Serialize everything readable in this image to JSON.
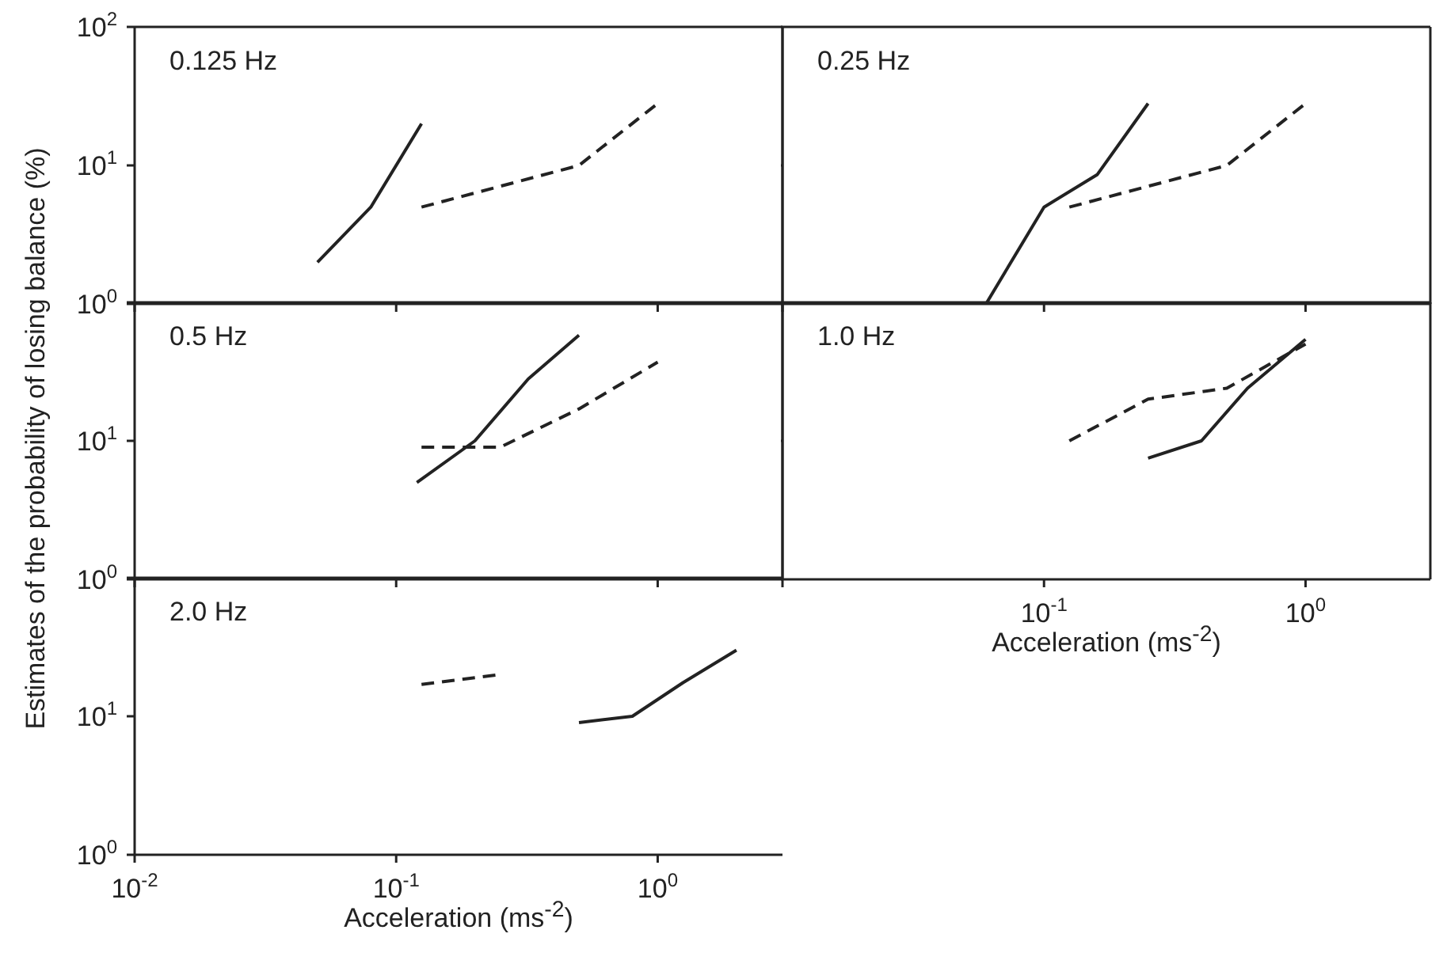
{
  "chart_data": [
    {
      "type": "line",
      "title": "0.125 Hz",
      "log": "xy",
      "xlim": [
        0.01,
        3
      ],
      "ylim": [
        1,
        100
      ],
      "xticks": [
        {
          "value": 0.01,
          "label": null
        },
        {
          "value": 0.1,
          "label": null
        },
        {
          "value": 1,
          "label": null
        }
      ],
      "yticks": [
        {
          "value": 1,
          "label": "10$^{0}$"
        },
        {
          "value": 10,
          "label": "10$^{1}$"
        },
        {
          "value": 100,
          "label": "10$^{2}$"
        }
      ],
      "tick_labels": "y",
      "series": [
        {
          "color": "#222222",
          "line_style": "solid",
          "x": [
            0.05,
            0.08,
            0.125
          ],
          "values": [
            2,
            5,
            20
          ]
        },
        {
          "color": "#222222",
          "line_style": "dashed",
          "x": [
            0.125,
            0.5,
            1
          ],
          "values": [
            5,
            10,
            28
          ]
        }
      ]
    },
    {
      "type": "line",
      "title": "0.25 Hz",
      "log": "xy",
      "xlim": [
        0.01,
        3
      ],
      "ylim": [
        1,
        100
      ],
      "xticks": [
        {
          "value": 0.01,
          "label": null
        },
        {
          "value": 0.1,
          "label": null
        },
        {
          "value": 1,
          "label": null
        }
      ],
      "yticks": [
        {
          "value": 1,
          "label": null
        },
        {
          "value": 10,
          "label": null
        },
        {
          "value": 100,
          "label": null
        }
      ],
      "tick_labels": false,
      "series": [
        {
          "color": "#222222",
          "line_style": "solid",
          "x": [
            0.06,
            0.1,
            0.16,
            0.25
          ],
          "values": [
            1,
            5,
            8.6,
            28
          ]
        },
        {
          "color": "#222222",
          "line_style": "dashed",
          "x": [
            0.125,
            0.5,
            1
          ],
          "values": [
            5,
            10,
            28
          ]
        }
      ]
    },
    {
      "type": "line",
      "title": "0.5 Hz",
      "ylabel": "Estimates of the probability of losing balance (%)",
      "log": "xy",
      "xlim": [
        0.01,
        3
      ],
      "ylim": [
        1,
        100
      ],
      "xticks": [
        {
          "value": 0.01,
          "label": null
        },
        {
          "value": 0.1,
          "label": null
        },
        {
          "value": 1,
          "label": null
        }
      ],
      "yticks": [
        {
          "value": 1,
          "label": "10$^{0}$"
        },
        {
          "value": 10,
          "label": "10$^{1}$"
        },
        {
          "value": 100,
          "label": null
        }
      ],
      "tick_labels": "y",
      "series": [
        {
          "color": "#222222",
          "line_style": "solid",
          "x": [
            0.12,
            0.2,
            0.32,
            0.5
          ],
          "values": [
            5,
            10,
            28,
            58
          ]
        },
        {
          "color": "#222222",
          "line_style": "dashed",
          "x": [
            0.125,
            0.25,
            0.5,
            1
          ],
          "values": [
            9,
            9,
            17,
            37
          ]
        }
      ]
    },
    {
      "type": "line",
      "title": "1.0 Hz",
      "xlabel": "Acceleration (ms$^{-2}$)",
      "log": "xy",
      "xlim": [
        0.01,
        3
      ],
      "ylim": [
        1,
        100
      ],
      "xticks": [
        {
          "value": 0.01,
          "label": null
        },
        {
          "value": 0.1,
          "label": "10$^{-1}$"
        },
        {
          "value": 1,
          "label": "10$^{0}$"
        }
      ],
      "yticks": [
        {
          "value": 1,
          "label": null
        },
        {
          "value": 10,
          "label": null
        },
        {
          "value": 100,
          "label": null
        }
      ],
      "tick_labels": "x",
      "series": [
        {
          "color": "#222222",
          "line_style": "solid",
          "x": [
            0.25,
            0.4,
            0.6,
            1
          ],
          "values": [
            7.5,
            10,
            24,
            54
          ]
        },
        {
          "color": "#222222",
          "line_style": "dashed",
          "x": [
            0.125,
            0.25,
            0.5,
            1
          ],
          "values": [
            10,
            20,
            24,
            50
          ]
        }
      ]
    },
    {
      "type": "line",
      "title": "2.0 Hz",
      "xlabel": "Acceleration (ms$^{-2}$)",
      "log": "xy",
      "xlim": [
        0.01,
        3
      ],
      "ylim": [
        1,
        100
      ],
      "xticks": [
        {
          "value": 0.01,
          "label": "10$^{-2}$"
        },
        {
          "value": 0.1,
          "label": "10$^{-1}$"
        },
        {
          "value": 1,
          "label": "10$^{0}$"
        }
      ],
      "yticks": [
        {
          "value": 1,
          "label": "10$^{0}$"
        },
        {
          "value": 10,
          "label": "10$^{1}$"
        },
        {
          "value": 100,
          "label": null
        }
      ],
      "series": [
        {
          "color": "#222222",
          "line_style": "solid",
          "x": [
            0.5,
            0.8,
            1.25,
            2
          ],
          "values": [
            9,
            10,
            17.5,
            30
          ]
        },
        {
          "color": "#222222",
          "line_style": "dashed",
          "x": [
            0.125,
            0.25
          ],
          "values": [
            17,
            20
          ]
        }
      ]
    }
  ]
}
